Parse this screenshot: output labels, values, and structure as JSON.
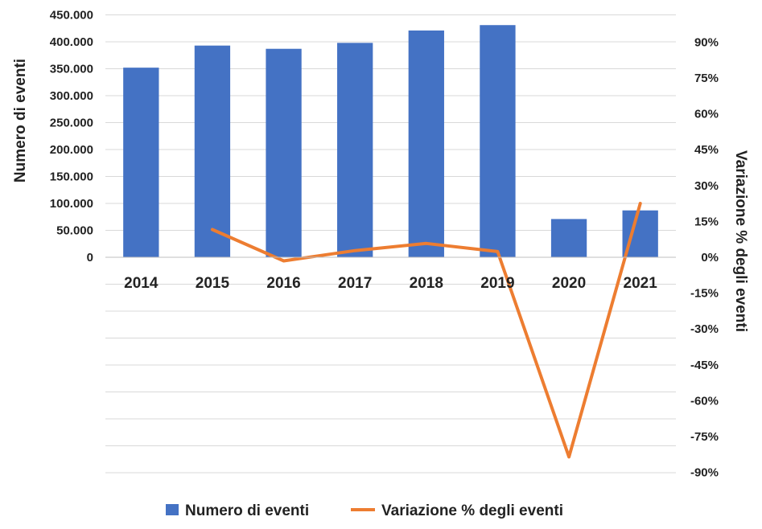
{
  "chart_data": {
    "type": "bar",
    "categories": [
      "2014",
      "2015",
      "2016",
      "2017",
      "2018",
      "2019",
      "2020",
      "2021"
    ],
    "series": [
      {
        "name": "Numero di eventi",
        "type": "bar",
        "axis": "left",
        "color": "#4472C4",
        "values": [
          352000,
          393000,
          387000,
          398000,
          421000,
          431000,
          71000,
          87000
        ]
      },
      {
        "name": "Variazione % degli eventi",
        "type": "line",
        "axis": "right",
        "color": "#ED7D31",
        "values": [
          null,
          11.6,
          -1.5,
          2.8,
          5.8,
          2.4,
          -83.5,
          22.5
        ]
      }
    ],
    "ylabel": "Numero di eventi",
    "ylabel_right": "Variazione % degli eventi",
    "ylim": [
      -400000,
      450000
    ],
    "ylim_right": [
      -90,
      100
    ],
    "yticks_left": [
      {
        "value": 0,
        "label": "0"
      },
      {
        "value": 50000,
        "label": "50.000"
      },
      {
        "value": 100000,
        "label": "100.000"
      },
      {
        "value": 150000,
        "label": "150.000"
      },
      {
        "value": 200000,
        "label": "200.000"
      },
      {
        "value": 250000,
        "label": "250.000"
      },
      {
        "value": 300000,
        "label": "300.000"
      },
      {
        "value": 350000,
        "label": "350.000"
      },
      {
        "value": 400000,
        "label": "400.000"
      },
      {
        "value": 450000,
        "label": "450.000"
      }
    ],
    "yticks_right": [
      {
        "value": 90,
        "label": "90%"
      },
      {
        "value": 75,
        "label": "75%"
      },
      {
        "value": 60,
        "label": "60%"
      },
      {
        "value": 45,
        "label": "45%"
      },
      {
        "value": 30,
        "label": "30%"
      },
      {
        "value": 15,
        "label": "15%"
      },
      {
        "value": 0,
        "label": "0%"
      },
      {
        "value": -15,
        "label": "-15%"
      },
      {
        "value": -30,
        "label": "-30%"
      },
      {
        "value": -45,
        "label": "-45%"
      },
      {
        "value": -60,
        "label": "-60%"
      },
      {
        "value": -75,
        "label": "-75%"
      },
      {
        "value": -90,
        "label": "-90%"
      }
    ],
    "grid": true,
    "legend_position": "bottom"
  }
}
